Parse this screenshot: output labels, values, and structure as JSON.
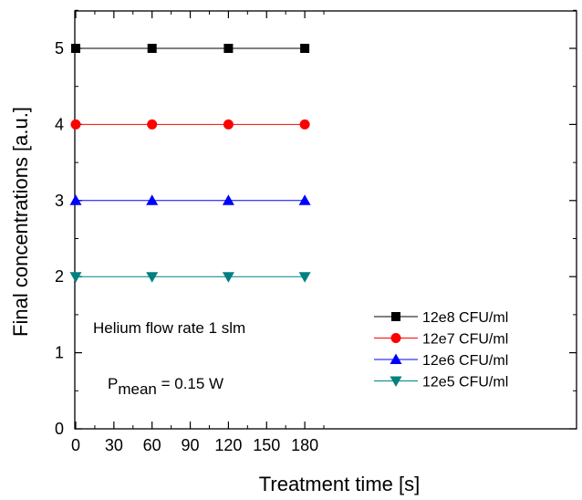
{
  "chart_data": {
    "type": "line",
    "title": "",
    "xlabel": "Treatment time [s]",
    "ylabel": "Final concentrations [a.u.]",
    "xlim": [
      0,
      195
    ],
    "ylim": [
      0,
      5.5
    ],
    "x_ticks": [
      0,
      30,
      60,
      90,
      120,
      150,
      180
    ],
    "y_ticks": [
      0,
      1,
      2,
      3,
      4,
      5
    ],
    "x_tick_labels": [
      "0",
      "30",
      "60",
      "90",
      "120",
      "150",
      "180"
    ],
    "y_tick_labels": [
      "0",
      "1",
      "2",
      "3",
      "4",
      "5"
    ],
    "grid": false,
    "legend_position": "bottom-right",
    "x": [
      0,
      60,
      120,
      180
    ],
    "series": [
      {
        "name": "12e8 CFU/ml",
        "values": [
          5,
          5,
          5,
          5
        ],
        "color": "#000000",
        "marker": "square"
      },
      {
        "name": "12e7 CFU/ml",
        "values": [
          4,
          4,
          4,
          4
        ],
        "color": "#ff0000",
        "marker": "circle"
      },
      {
        "name": "12e6 CFU/ml",
        "values": [
          3,
          3,
          3,
          3
        ],
        "color": "#0000ff",
        "marker": "triangle-up"
      },
      {
        "name": "12e5 CFU/ml",
        "values": [
          2,
          2,
          2,
          2
        ],
        "color": "#008080",
        "marker": "triangle-down"
      }
    ],
    "annotations": {
      "flow_rate": "Helium flow rate 1 slm",
      "pmean_symbol": "P",
      "pmean_subscript": "mean",
      "pmean_value": " = 0.15 W"
    }
  }
}
